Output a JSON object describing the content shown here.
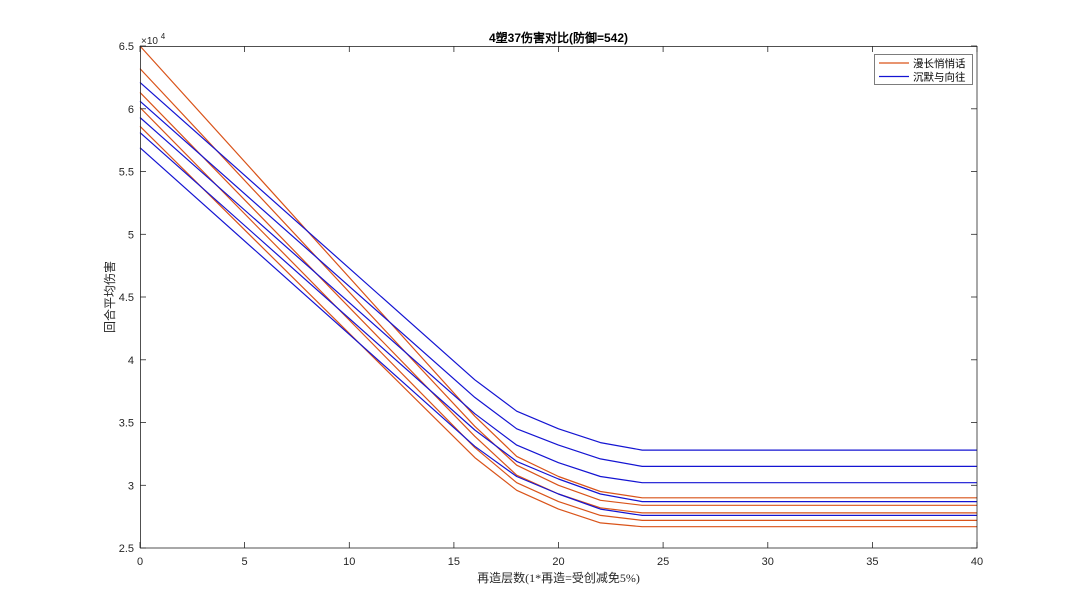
{
  "chart_data": {
    "type": "line",
    "title": "4塑37伤害对比(防御=542)",
    "xlabel": "再造层数(1*再造=受创减免5%)",
    "ylabel": "回合平均伤害",
    "xlim": [
      0,
      40
    ],
    "ylim": [
      2.5,
      6.5
    ],
    "x_ticks": [
      0,
      5,
      10,
      15,
      20,
      25,
      30,
      35,
      40
    ],
    "y_ticks": [
      2.5,
      3,
      3.5,
      4,
      4.5,
      5,
      5.5,
      6,
      6.5
    ],
    "y_exponent": {
      "base": "×10",
      "power": "4"
    },
    "grid": false,
    "legend_position": "top-right",
    "x": [
      0,
      16,
      18,
      20,
      22,
      24,
      40
    ],
    "series": [
      {
        "name": "漫长悄悄话",
        "color": "#D95319",
        "lines": [
          [
            6.5,
            3.55,
            3.23,
            3.07,
            2.95,
            2.9,
            2.9
          ],
          [
            6.32,
            3.47,
            3.16,
            3.0,
            2.88,
            2.84,
            2.84
          ],
          [
            6.13,
            3.39,
            3.08,
            2.93,
            2.82,
            2.78,
            2.78
          ],
          [
            6.01,
            3.3,
            3.02,
            2.87,
            2.76,
            2.72,
            2.72
          ],
          [
            5.86,
            3.22,
            2.96,
            2.81,
            2.7,
            2.67,
            2.67
          ]
        ]
      },
      {
        "name": "沉默与向往",
        "color": "#1414D2",
        "lines": [
          [
            6.21,
            3.84,
            3.59,
            3.45,
            3.34,
            3.28,
            3.28
          ],
          [
            6.06,
            3.7,
            3.45,
            3.32,
            3.21,
            3.15,
            3.15
          ],
          [
            5.93,
            3.57,
            3.32,
            3.18,
            3.07,
            3.02,
            3.02
          ],
          [
            5.81,
            3.44,
            3.19,
            3.05,
            2.93,
            2.87,
            2.87
          ],
          [
            5.69,
            3.31,
            3.07,
            2.93,
            2.81,
            2.76,
            2.76
          ]
        ]
      }
    ]
  }
}
